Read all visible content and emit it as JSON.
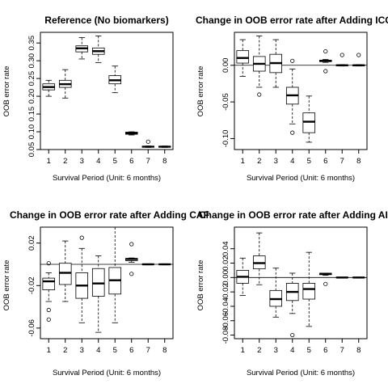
{
  "chart_data": [
    {
      "type": "boxplot",
      "title": "Reference (No biomarkers)",
      "xlabel": "Survival Period (Unit: 6 months)",
      "ylabel": "OOB error rate",
      "categories": [
        "1",
        "2",
        "3",
        "4",
        "5",
        "6",
        "7",
        "8"
      ],
      "ylim": [
        0.05,
        0.38
      ],
      "yticks": [
        0.05,
        0.1,
        0.15,
        0.2,
        0.25,
        0.3,
        0.35
      ],
      "ytick_labels": [
        "0.05",
        "0.10",
        "0.15",
        "0.20",
        "0.25",
        "0.30",
        "0.35"
      ],
      "reference_line": null,
      "boxes": [
        {
          "min": 0.2,
          "q1": 0.218,
          "median": 0.226,
          "q3": 0.235,
          "max": 0.245,
          "outliers": []
        },
        {
          "min": 0.195,
          "q1": 0.225,
          "median": 0.234,
          "q3": 0.245,
          "max": 0.275,
          "outliers": []
        },
        {
          "min": 0.305,
          "q1": 0.325,
          "median": 0.335,
          "q3": 0.342,
          "max": 0.365,
          "outliers": []
        },
        {
          "min": 0.295,
          "q1": 0.318,
          "median": 0.327,
          "q3": 0.336,
          "max": 0.37,
          "outliers": []
        },
        {
          "min": 0.21,
          "q1": 0.235,
          "median": 0.245,
          "q3": 0.258,
          "max": 0.285,
          "outliers": []
        },
        {
          "min": 0.091,
          "q1": 0.093,
          "median": 0.096,
          "q3": 0.099,
          "max": 0.1,
          "outliers": []
        },
        {
          "min": 0.056,
          "q1": 0.057,
          "median": 0.058,
          "q3": 0.059,
          "max": 0.06,
          "outliers": [
            0.072
          ]
        },
        {
          "min": 0.056,
          "q1": 0.057,
          "median": 0.058,
          "q3": 0.059,
          "max": 0.06,
          "outliers": []
        }
      ]
    },
    {
      "type": "boxplot",
      "title": "Change in OOB error rate after Adding ICG",
      "xlabel": "Survival Period (Unit: 6 months)",
      "ylabel": "OOB error rate",
      "categories": [
        "1",
        "2",
        "3",
        "4",
        "5",
        "6",
        "7",
        "8"
      ],
      "ylim": [
        -0.115,
        0.045
      ],
      "yticks": [
        -0.1,
        -0.05,
        0.0
      ],
      "ytick_labels": [
        "-0.10",
        "-0.05",
        "0.00"
      ],
      "reference_line": 0,
      "boxes": [
        {
          "min": -0.015,
          "q1": 0.003,
          "median": 0.01,
          "q3": 0.02,
          "max": 0.035,
          "outliers": []
        },
        {
          "min": -0.03,
          "q1": -0.008,
          "median": 0.002,
          "q3": 0.012,
          "max": 0.04,
          "outliers": [
            -0.04
          ]
        },
        {
          "min": -0.03,
          "q1": -0.01,
          "median": 0.003,
          "q3": 0.015,
          "max": 0.035,
          "outliers": []
        },
        {
          "min": -0.08,
          "q1": -0.053,
          "median": -0.041,
          "q3": -0.03,
          "max": -0.005,
          "outliers": [
            -0.092,
            0.006
          ]
        },
        {
          "min": -0.105,
          "q1": -0.092,
          "median": -0.077,
          "q3": -0.065,
          "max": -0.042,
          "outliers": []
        },
        {
          "min": 0.004,
          "q1": 0.005,
          "median": 0.006,
          "q3": 0.007,
          "max": 0.008,
          "outliers": [
            0.019,
            -0.008
          ]
        },
        {
          "min": -0.001,
          "q1": -0.0005,
          "median": 0.0,
          "q3": 0.0005,
          "max": 0.001,
          "outliers": [
            0.014
          ]
        },
        {
          "min": -0.001,
          "q1": -0.0005,
          "median": 0.0,
          "q3": 0.0005,
          "max": 0.001,
          "outliers": [
            0.014
          ]
        }
      ]
    },
    {
      "type": "boxplot",
      "title": "Change in OOB error rate after Adding CAF",
      "xlabel": "Survival Period (Unit: 6 months)",
      "ylabel": "OOB error rate",
      "categories": [
        "1",
        "2",
        "3",
        "4",
        "5",
        "6",
        "7",
        "8"
      ],
      "ylim": [
        -0.07,
        0.035
      ],
      "yticks": [
        -0.06,
        -0.02,
        0.02
      ],
      "ytick_labels": [
        "-0.06",
        "-0.02",
        "0.02"
      ],
      "reference_line": 0,
      "boxes": [
        {
          "min": -0.035,
          "q1": -0.024,
          "median": -0.016,
          "q3": -0.013,
          "max": -0.008,
          "outliers": [
            0.001,
            -0.043,
            -0.052
          ]
        },
        {
          "min": -0.035,
          "q1": -0.019,
          "median": -0.008,
          "q3": 0.001,
          "max": 0.022,
          "outliers": []
        },
        {
          "min": -0.055,
          "q1": -0.032,
          "median": -0.02,
          "q3": -0.008,
          "max": 0.015,
          "outliers": [
            0.025
          ]
        },
        {
          "min": -0.064,
          "q1": -0.03,
          "median": -0.018,
          "q3": -0.004,
          "max": 0.008,
          "outliers": []
        },
        {
          "min": -0.055,
          "q1": -0.028,
          "median": -0.015,
          "q3": -0.003,
          "max": 0.035,
          "outliers": []
        },
        {
          "min": 0.002,
          "q1": 0.0035,
          "median": 0.005,
          "q3": 0.0055,
          "max": 0.006,
          "outliers": [
            0.019,
            -0.009
          ]
        },
        {
          "min": -0.0005,
          "q1": -0.0002,
          "median": 0.0,
          "q3": 0.0002,
          "max": 0.0005,
          "outliers": []
        },
        {
          "min": -0.0005,
          "q1": -0.0002,
          "median": 0.0,
          "q3": 0.0002,
          "max": 0.0005,
          "outliers": []
        }
      ]
    },
    {
      "type": "boxplot",
      "title": "Change in OOB error rate after Adding AI",
      "xlabel": "Survival Period (Unit: 6 months)",
      "ylabel": "OOB error rate",
      "categories": [
        "1",
        "2",
        "3",
        "4",
        "5",
        "6",
        "7",
        "8"
      ],
      "ylim": [
        -0.085,
        0.07
      ],
      "yticks": [
        -0.08,
        -0.06,
        -0.04,
        -0.02,
        0.0,
        0.02,
        0.04
      ],
      "ytick_labels": [
        "-0.08",
        "-0.06",
        "-0.04",
        "-0.02",
        "0.00",
        "0.02",
        "0.04"
      ],
      "reference_line": 0,
      "boxes": [
        {
          "min": -0.025,
          "q1": -0.008,
          "median": 0.001,
          "q3": 0.01,
          "max": 0.027,
          "outliers": []
        },
        {
          "min": -0.01,
          "q1": 0.012,
          "median": 0.02,
          "q3": 0.03,
          "max": 0.062,
          "outliers": []
        },
        {
          "min": -0.055,
          "q1": -0.04,
          "median": -0.03,
          "q3": -0.018,
          "max": 0.013,
          "outliers": []
        },
        {
          "min": -0.05,
          "q1": -0.032,
          "median": -0.02,
          "q3": -0.008,
          "max": 0.006,
          "outliers": [
            -0.08
          ]
        },
        {
          "min": -0.068,
          "q1": -0.03,
          "median": -0.016,
          "q3": -0.008,
          "max": 0.035,
          "outliers": []
        },
        {
          "min": 0.003,
          "q1": 0.004,
          "median": 0.005,
          "q3": 0.006,
          "max": 0.006,
          "outliers": [
            -0.009
          ]
        },
        {
          "min": -0.0005,
          "q1": -0.0002,
          "median": 0.0,
          "q3": 0.0002,
          "max": 0.0005,
          "outliers": []
        },
        {
          "min": -0.0005,
          "q1": -0.0002,
          "median": 0.0,
          "q3": 0.0002,
          "max": 0.0005,
          "outliers": []
        }
      ]
    }
  ]
}
